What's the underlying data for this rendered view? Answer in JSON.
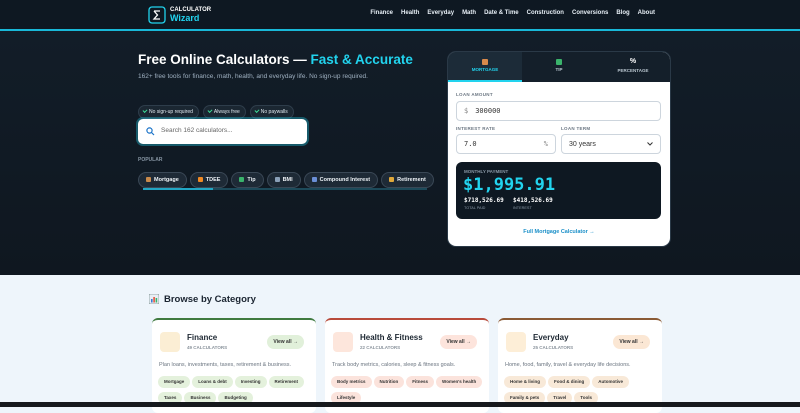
{
  "header": {
    "logo_top": "CALCULATOR",
    "logo_bottom": "Wizard",
    "nav": [
      "Finance",
      "Health",
      "Everyday",
      "Math",
      "Date & Time",
      "Construction",
      "Conversions",
      "Blog",
      "About"
    ]
  },
  "hero": {
    "title": "Free Online Calculators — ",
    "title_accent": "Fast & Accurate",
    "subtitle": "162+ free tools for finance, math, health, and everyday life. No sign-up required.",
    "badges": [
      "No sign-up required",
      "Always free",
      "No paywalls"
    ],
    "search_placeholder": "Search 162 calculators...",
    "popular_label": "POPULAR",
    "chips": [
      "Mortgage",
      "TDEE",
      "Tip",
      "BMI",
      "Compound Interest",
      "Retirement"
    ]
  },
  "widget": {
    "tabs": [
      {
        "label": "MORTGAGE"
      },
      {
        "label": "TIP"
      },
      {
        "icon": "%",
        "label": "PERCENTAGE"
      }
    ],
    "loan_amount_label": "LOAN AMOUNT",
    "currency": "$",
    "loan_amount": "300000",
    "interest_rate_label": "INTEREST RATE",
    "interest_rate": "7.0",
    "percent": "%",
    "loan_term_label": "LOAN TERM",
    "loan_term": "30 years",
    "monthly_payment_label": "MONTHLY PAYMENT",
    "monthly_payment": "$1,995.91",
    "total_paid": "$718,526.69",
    "total_paid_label": "TOTAL PAID",
    "interest": "$418,526.69",
    "interest_label": "INTEREST",
    "link": "Full Mortgage Calculator →"
  },
  "categories": {
    "title": "Browse by Category",
    "cards": [
      {
        "name": "Finance",
        "count": "49 CALCULATORS",
        "view_all": "View all →",
        "description": "Plan loans, investments, taxes, retirement & business.",
        "tags": [
          "Mortgage",
          "Loans & debt",
          "Investing",
          "Retirement",
          "Taxes",
          "Business",
          "Budgeting"
        ]
      },
      {
        "name": "Health & Fitness",
        "count": "22 CALCULATORS",
        "view_all": "View all →",
        "description": "Track body metrics, calories, sleep & fitness goals.",
        "tags": [
          "Body metrics",
          "Nutrition",
          "Fitness",
          "Women's health",
          "Lifestyle"
        ]
      },
      {
        "name": "Everyday",
        "count": "25 CALCULATORS",
        "view_all": "View all →",
        "description": "Home, food, family, travel & everyday life decisions.",
        "tags": [
          "Home & living",
          "Food & dining",
          "Automotive",
          "Family & pets",
          "Travel",
          "Tools"
        ]
      }
    ]
  }
}
